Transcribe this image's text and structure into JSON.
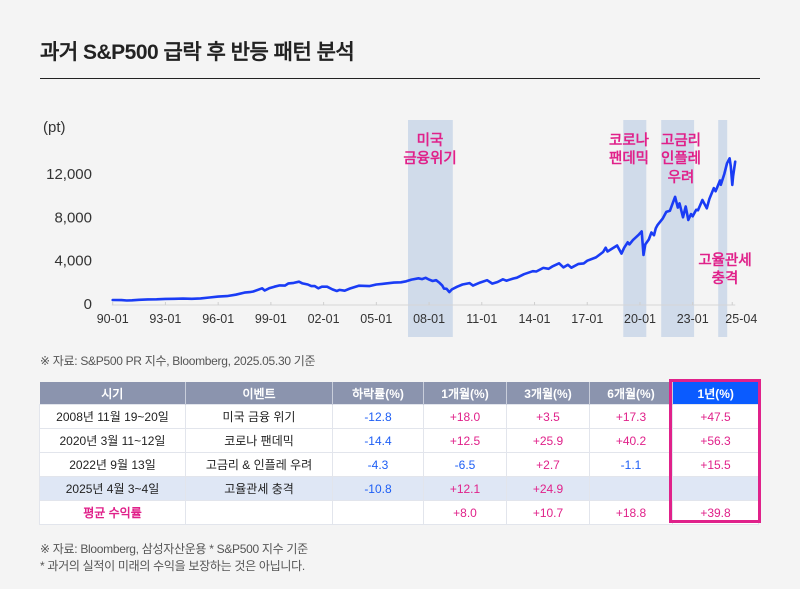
{
  "title": "과거 S&P500 급락 후 반등 패턴 분석",
  "chart_data": {
    "type": "line",
    "title": "",
    "unit_label": "(pt)",
    "xlabel": "",
    "ylabel": "(pt)",
    "ylim": [
      0,
      14000
    ],
    "x_range": [
      1990.0,
      2025.42
    ],
    "grid": false,
    "y_ticks": [
      {
        "value": 0,
        "label": "0"
      },
      {
        "value": 4000,
        "label": "4,000"
      },
      {
        "value": 8000,
        "label": "8,000"
      },
      {
        "value": 12000,
        "label": "12,000"
      }
    ],
    "x_ticks": [
      {
        "value": 1990.0,
        "label": "90-01"
      },
      {
        "value": 1993.0,
        "label": "93-01"
      },
      {
        "value": 1996.0,
        "label": "96-01"
      },
      {
        "value": 1999.0,
        "label": "99-01"
      },
      {
        "value": 2002.0,
        "label": "02-01"
      },
      {
        "value": 2005.0,
        "label": "05-01"
      },
      {
        "value": 2008.0,
        "label": "08-01"
      },
      {
        "value": 2011.0,
        "label": "11-01"
      },
      {
        "value": 2014.0,
        "label": "14-01"
      },
      {
        "value": 2017.0,
        "label": "17-01"
      },
      {
        "value": 2020.0,
        "label": "20-01"
      },
      {
        "value": 2023.0,
        "label": "23-01"
      },
      {
        "value": 2025.25,
        "label": "25-04"
      }
    ],
    "band_color": "#d0dbea",
    "annotation_color": "#e0218a",
    "shaded_periods": [
      {
        "id": "financial-crisis",
        "start": 2006.8,
        "end": 2009.35,
        "label_lines": [
          "미국",
          "금융위기"
        ]
      },
      {
        "id": "covid",
        "start": 2019.05,
        "end": 2020.36,
        "label_lines": [
          "코로나",
          "팬데믹"
        ]
      },
      {
        "id": "rates-inflation",
        "start": 2021.21,
        "end": 2023.08,
        "label_lines": [
          "고금리",
          "인플레",
          "우려"
        ]
      },
      {
        "id": "tariff",
        "start": 2024.45,
        "end": 2024.96,
        "label_lines": [
          "고율관세",
          "충격"
        ]
      }
    ],
    "series": [
      {
        "name": "S&P500",
        "color": "#1a3cf5",
        "points": [
          [
            1990.0,
            370
          ],
          [
            1990.5,
            360
          ],
          [
            1990.8,
            325
          ],
          [
            1991.1,
            340
          ],
          [
            1991.5,
            390
          ],
          [
            1992.0,
            420
          ],
          [
            1992.5,
            430
          ],
          [
            1993.0,
            470
          ],
          [
            1993.5,
            480
          ],
          [
            1994.0,
            500
          ],
          [
            1994.5,
            480
          ],
          [
            1995.0,
            520
          ],
          [
            1995.5,
            600
          ],
          [
            1996.0,
            680
          ],
          [
            1996.5,
            730
          ],
          [
            1997.0,
            860
          ],
          [
            1997.5,
            1050
          ],
          [
            1997.8,
            1100
          ],
          [
            1998.0,
            1150
          ],
          [
            1998.5,
            1450
          ],
          [
            1998.65,
            1250
          ],
          [
            1998.9,
            1450
          ],
          [
            1999.2,
            1600
          ],
          [
            1999.5,
            1720
          ],
          [
            1999.8,
            1700
          ],
          [
            2000.0,
            1900
          ],
          [
            2000.3,
            1950
          ],
          [
            2000.6,
            2060
          ],
          [
            2000.8,
            1900
          ],
          [
            2001.1,
            1800
          ],
          [
            2001.3,
            1650
          ],
          [
            2001.5,
            1650
          ],
          [
            2001.7,
            1450
          ],
          [
            2001.9,
            1600
          ],
          [
            2002.2,
            1600
          ],
          [
            2002.5,
            1350
          ],
          [
            2002.75,
            1200
          ],
          [
            2002.9,
            1300
          ],
          [
            2003.2,
            1230
          ],
          [
            2003.5,
            1430
          ],
          [
            2004.0,
            1690
          ],
          [
            2004.6,
            1650
          ],
          [
            2005.0,
            1800
          ],
          [
            2005.5,
            1880
          ],
          [
            2006.0,
            1980
          ],
          [
            2006.4,
            2000
          ],
          [
            2006.7,
            2100
          ],
          [
            2007.0,
            2250
          ],
          [
            2007.4,
            2370
          ],
          [
            2007.6,
            2300
          ],
          [
            2007.8,
            2420
          ],
          [
            2008.0,
            2250
          ],
          [
            2008.2,
            2120
          ],
          [
            2008.4,
            2200
          ],
          [
            2008.6,
            1950
          ],
          [
            2008.75,
            1700
          ],
          [
            2008.85,
            1420
          ],
          [
            2009.0,
            1400
          ],
          [
            2009.15,
            1100
          ],
          [
            2009.3,
            1350
          ],
          [
            2009.6,
            1600
          ],
          [
            2009.9,
            1800
          ],
          [
            2010.3,
            1930
          ],
          [
            2010.5,
            1700
          ],
          [
            2010.9,
            1980
          ],
          [
            2011.3,
            2200
          ],
          [
            2011.6,
            1880
          ],
          [
            2011.9,
            2030
          ],
          [
            2012.2,
            2280
          ],
          [
            2012.4,
            2150
          ],
          [
            2012.8,
            2350
          ],
          [
            2013.0,
            2430
          ],
          [
            2013.4,
            2750
          ],
          [
            2013.9,
            3030
          ],
          [
            2014.1,
            3000
          ],
          [
            2014.5,
            3330
          ],
          [
            2014.8,
            3250
          ],
          [
            2015.0,
            3450
          ],
          [
            2015.4,
            3760
          ],
          [
            2015.65,
            3380
          ],
          [
            2015.9,
            3620
          ],
          [
            2016.1,
            3350
          ],
          [
            2016.5,
            3700
          ],
          [
            2016.8,
            3750
          ],
          [
            2017.0,
            4000
          ],
          [
            2017.5,
            4300
          ],
          [
            2017.9,
            4800
          ],
          [
            2018.05,
            5200
          ],
          [
            2018.15,
            4850
          ],
          [
            2018.7,
            5400
          ],
          [
            2018.95,
            4650
          ],
          [
            2019.1,
            5200
          ],
          [
            2019.3,
            5700
          ],
          [
            2019.4,
            5500
          ],
          [
            2019.6,
            5900
          ],
          [
            2019.9,
            6350
          ],
          [
            2020.1,
            6700
          ],
          [
            2020.2,
            4520
          ],
          [
            2020.3,
            5500
          ],
          [
            2020.5,
            5950
          ],
          [
            2020.65,
            6600
          ],
          [
            2020.8,
            6350
          ],
          [
            2020.9,
            7000
          ],
          [
            2021.0,
            7300
          ],
          [
            2021.3,
            7900
          ],
          [
            2021.5,
            8500
          ],
          [
            2021.7,
            8600
          ],
          [
            2021.95,
            9700
          ],
          [
            2022.0,
            9900
          ],
          [
            2022.15,
            8900
          ],
          [
            2022.25,
            9300
          ],
          [
            2022.45,
            8000
          ],
          [
            2022.6,
            9000
          ],
          [
            2022.75,
            7750
          ],
          [
            2022.9,
            8300
          ],
          [
            2023.0,
            8100
          ],
          [
            2023.2,
            8700
          ],
          [
            2023.3,
            8650
          ],
          [
            2023.55,
            9600
          ],
          [
            2023.8,
            8830
          ],
          [
            2023.95,
            9700
          ],
          [
            2024.2,
            10700
          ],
          [
            2024.3,
            10400
          ],
          [
            2024.55,
            11400
          ],
          [
            2024.6,
            11000
          ],
          [
            2024.8,
            12000
          ],
          [
            2024.95,
            12990
          ],
          [
            2025.1,
            13450
          ],
          [
            2025.17,
            12700
          ],
          [
            2025.25,
            10990
          ],
          [
            2025.3,
            11800
          ],
          [
            2025.42,
            13140
          ]
        ]
      }
    ]
  },
  "chart_source_note": "※ 자료: S&P500 PR 지수, Bloomberg, 2025.05.30 기준",
  "table": {
    "headers": [
      "시기",
      "이벤트",
      "하락률(%)",
      "1개월(%)",
      "3개월(%)",
      "6개월(%)",
      "1년(%)"
    ],
    "highlight_header_color": "#0a5bff",
    "highlight_box_color": "#e0218a",
    "rows": [
      {
        "cells": [
          "2008년 11월 19~20일",
          "미국 금융 위기",
          "-12.8",
          "+18.0",
          "+3.5",
          "+17.3",
          "+47.5"
        ]
      },
      {
        "cells": [
          "2020년 3월 11~12일",
          "코로나 팬데믹",
          "-14.4",
          "+12.5",
          "+25.9",
          "+40.2",
          "+56.3"
        ]
      },
      {
        "cells": [
          "2022년 9월 13일",
          "고금리 & 인플레 우려",
          "-4.3",
          "-6.5",
          "+2.7",
          "-1.1",
          "+15.5"
        ]
      },
      {
        "cells": [
          "2025년 4월 3~4일",
          "고율관세 충격",
          "-10.8",
          "+12.1",
          "+24.9",
          "",
          ""
        ]
      },
      {
        "cells": [
          "평균 수익률",
          "",
          "",
          "+8.0",
          "+10.7",
          "+18.8",
          "+39.8"
        ]
      }
    ]
  },
  "footnotes": [
    "※ 자료: Bloomberg, 삼성자산운용 * S&P500 지수 기준",
    "* 과거의 실적이 미래의 수익을 보장하는 것은 아닙니다."
  ]
}
